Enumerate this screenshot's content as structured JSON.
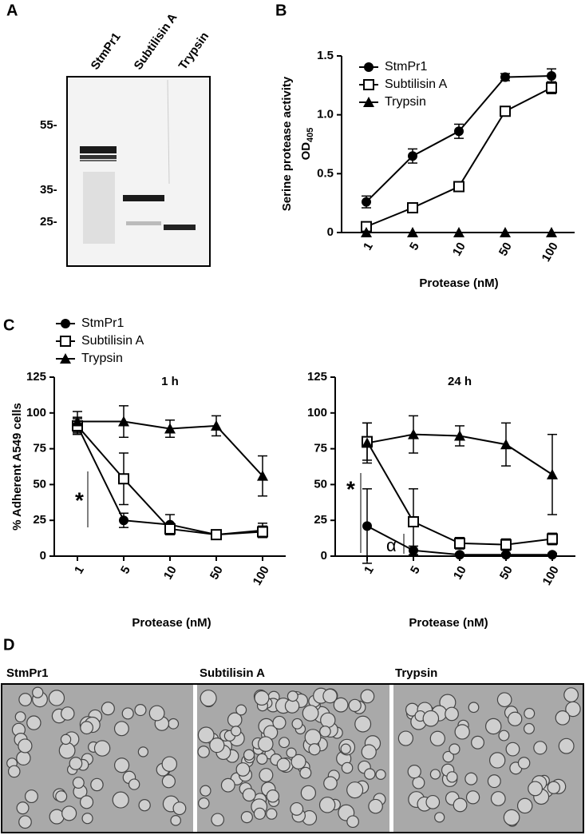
{
  "panel_labels": [
    "A",
    "B",
    "C",
    "D"
  ],
  "gel": {
    "lanes": [
      "StmPr1",
      "Subtilisin A",
      "Trypsin"
    ],
    "markers": [
      "55-",
      "35-",
      "25-"
    ]
  },
  "micrographs": {
    "labels": [
      "StmPr1",
      "Subtilisin A",
      "Trypsin"
    ]
  },
  "chart_data": [
    {
      "type": "line",
      "ylabel": "Serine protease activity",
      "ylabel_line2": "OD",
      "ylabel_subscript": "405",
      "xlabel": "Protease (nM)",
      "categories": [
        "1",
        "5",
        "10",
        "50",
        "100"
      ],
      "ylim": [
        0,
        1.5
      ],
      "yticks": [
        0,
        0.5,
        {
          "value": 1,
          "label": "1.0"
        },
        1.5
      ],
      "legend": "upper left",
      "series": [
        {
          "name": "StmPr1",
          "marker": "circle",
          "color": "#000000",
          "values": [
            0.26,
            0.65,
            0.86,
            1.32,
            1.33
          ],
          "errors": [
            0.05,
            0.06,
            0.06,
            0.03,
            0.06
          ]
        },
        {
          "name": "Subtilisin A",
          "marker": "square-open",
          "color": "#000000",
          "values": [
            0.05,
            0.21,
            0.39,
            1.03,
            1.23
          ],
          "errors": [
            0.02,
            0.04,
            0.04,
            0.03,
            0.05
          ]
        },
        {
          "name": "Trypsin",
          "marker": "triangle",
          "color": "#000000",
          "values": [
            0,
            0,
            0,
            0,
            0
          ]
        }
      ]
    },
    {
      "type": "line",
      "title": "1 h",
      "ylabel": "% Adherent A549 cells",
      "xlabel": "Protease (nM)",
      "categories": [
        "1",
        "5",
        "10",
        "50",
        "100"
      ],
      "ylim": [
        0,
        125
      ],
      "yticks": [
        0,
        25,
        50,
        75,
        100,
        125
      ],
      "legend": "above",
      "annotations": [
        "*"
      ],
      "series": [
        {
          "name": "StmPr1",
          "marker": "circle",
          "color": "#000000",
          "values": [
            91,
            25,
            22,
            15,
            18
          ],
          "errors": [
            6,
            5,
            7,
            3,
            5
          ]
        },
        {
          "name": "Subtilisin A",
          "marker": "square-open",
          "color": "#000000",
          "values": [
            91,
            54,
            19,
            15,
            17
          ],
          "errors": [
            5,
            18,
            4,
            3,
            4
          ]
        },
        {
          "name": "Trypsin",
          "marker": "triangle",
          "color": "#000000",
          "values": [
            94,
            94,
            89,
            91,
            56
          ],
          "errors": [
            7,
            11,
            6,
            7,
            14
          ]
        }
      ]
    },
    {
      "type": "line",
      "title": "24 h",
      "xlabel": "Protease (nM)",
      "categories": [
        "1",
        "5",
        "10",
        "50",
        "100"
      ],
      "ylim": [
        0,
        125
      ],
      "yticks": [
        0,
        25,
        50,
        75,
        100,
        125
      ],
      "annotations": [
        "*",
        "α"
      ],
      "series": [
        {
          "marker": "circle",
          "color": "#000000",
          "values": [
            21,
            4,
            1,
            1,
            1
          ],
          "errors": [
            26,
            3,
            1,
            1,
            1
          ]
        },
        {
          "marker": "square-open",
          "color": "#000000",
          "values": [
            80,
            24,
            9,
            8,
            12
          ],
          "errors": [
            13,
            23,
            4,
            4,
            4
          ]
        },
        {
          "marker": "triangle",
          "color": "#000000",
          "values": [
            79,
            85,
            84,
            78,
            57
          ],
          "errors": [
            14,
            13,
            7,
            15,
            28
          ]
        }
      ]
    }
  ]
}
